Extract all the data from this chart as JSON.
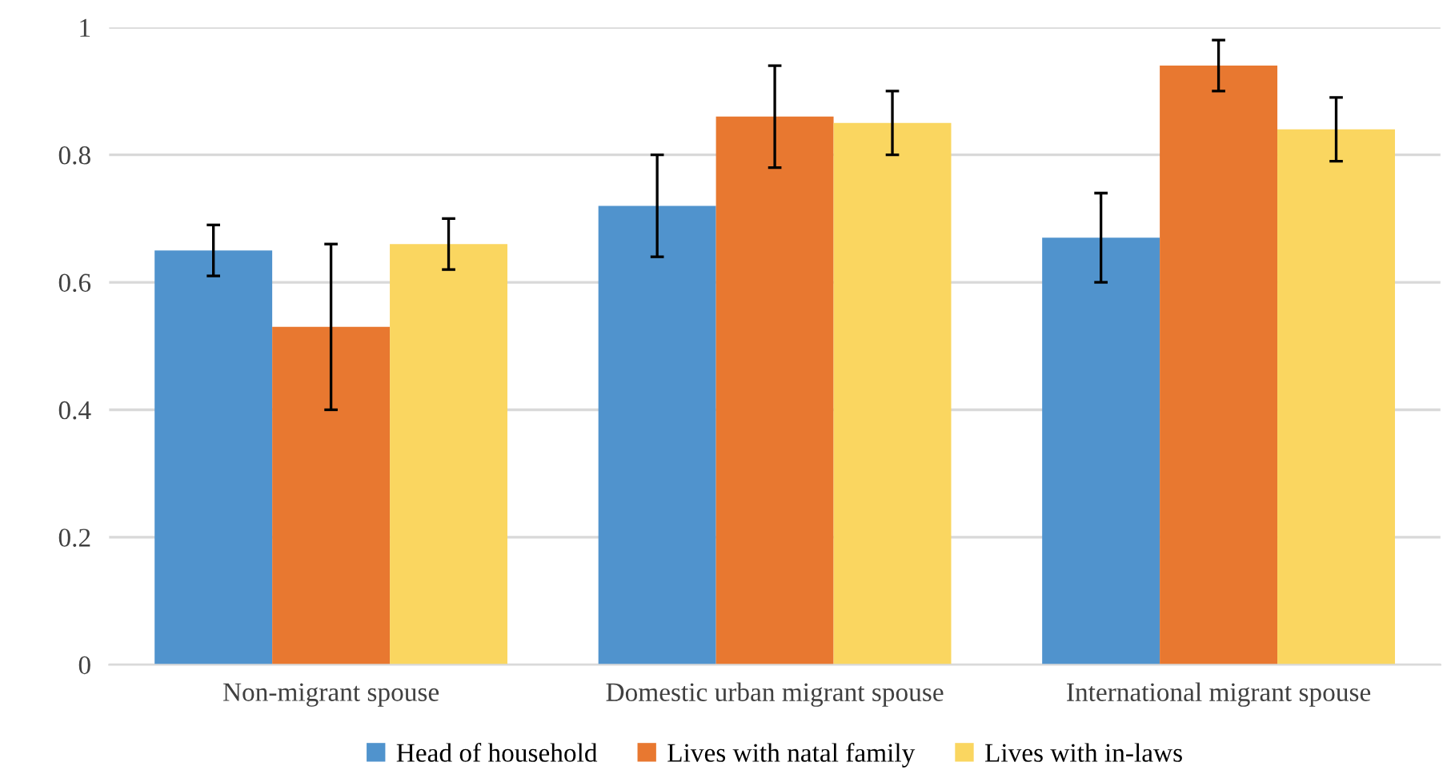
{
  "chart_data": {
    "type": "bar",
    "categories": [
      "Non-migrant spouse",
      "Domestic urban migrant spouse",
      "International migrant spouse"
    ],
    "series": [
      {
        "name": "Head of household",
        "color": "#5093cd",
        "values": [
          0.65,
          0.72,
          0.67
        ],
        "errors": [
          [
            0.61,
            0.69
          ],
          [
            0.64,
            0.8
          ],
          [
            0.6,
            0.74
          ]
        ]
      },
      {
        "name": "Lives with natal family",
        "color": "#e87830",
        "values": [
          0.53,
          0.86,
          0.94
        ],
        "errors": [
          [
            0.4,
            0.66
          ],
          [
            0.78,
            0.94
          ],
          [
            0.9,
            0.98
          ]
        ]
      },
      {
        "name": "Lives with in-laws",
        "color": "#fad660",
        "values": [
          0.66,
          0.85,
          0.84
        ],
        "errors": [
          [
            0.62,
            0.7
          ],
          [
            0.8,
            0.9
          ],
          [
            0.79,
            0.89
          ]
        ]
      }
    ],
    "ylim": [
      0,
      1
    ],
    "yticks": [
      0,
      0.2,
      0.4,
      0.6,
      0.8,
      1
    ],
    "grid": "y",
    "legend": "bottom"
  }
}
